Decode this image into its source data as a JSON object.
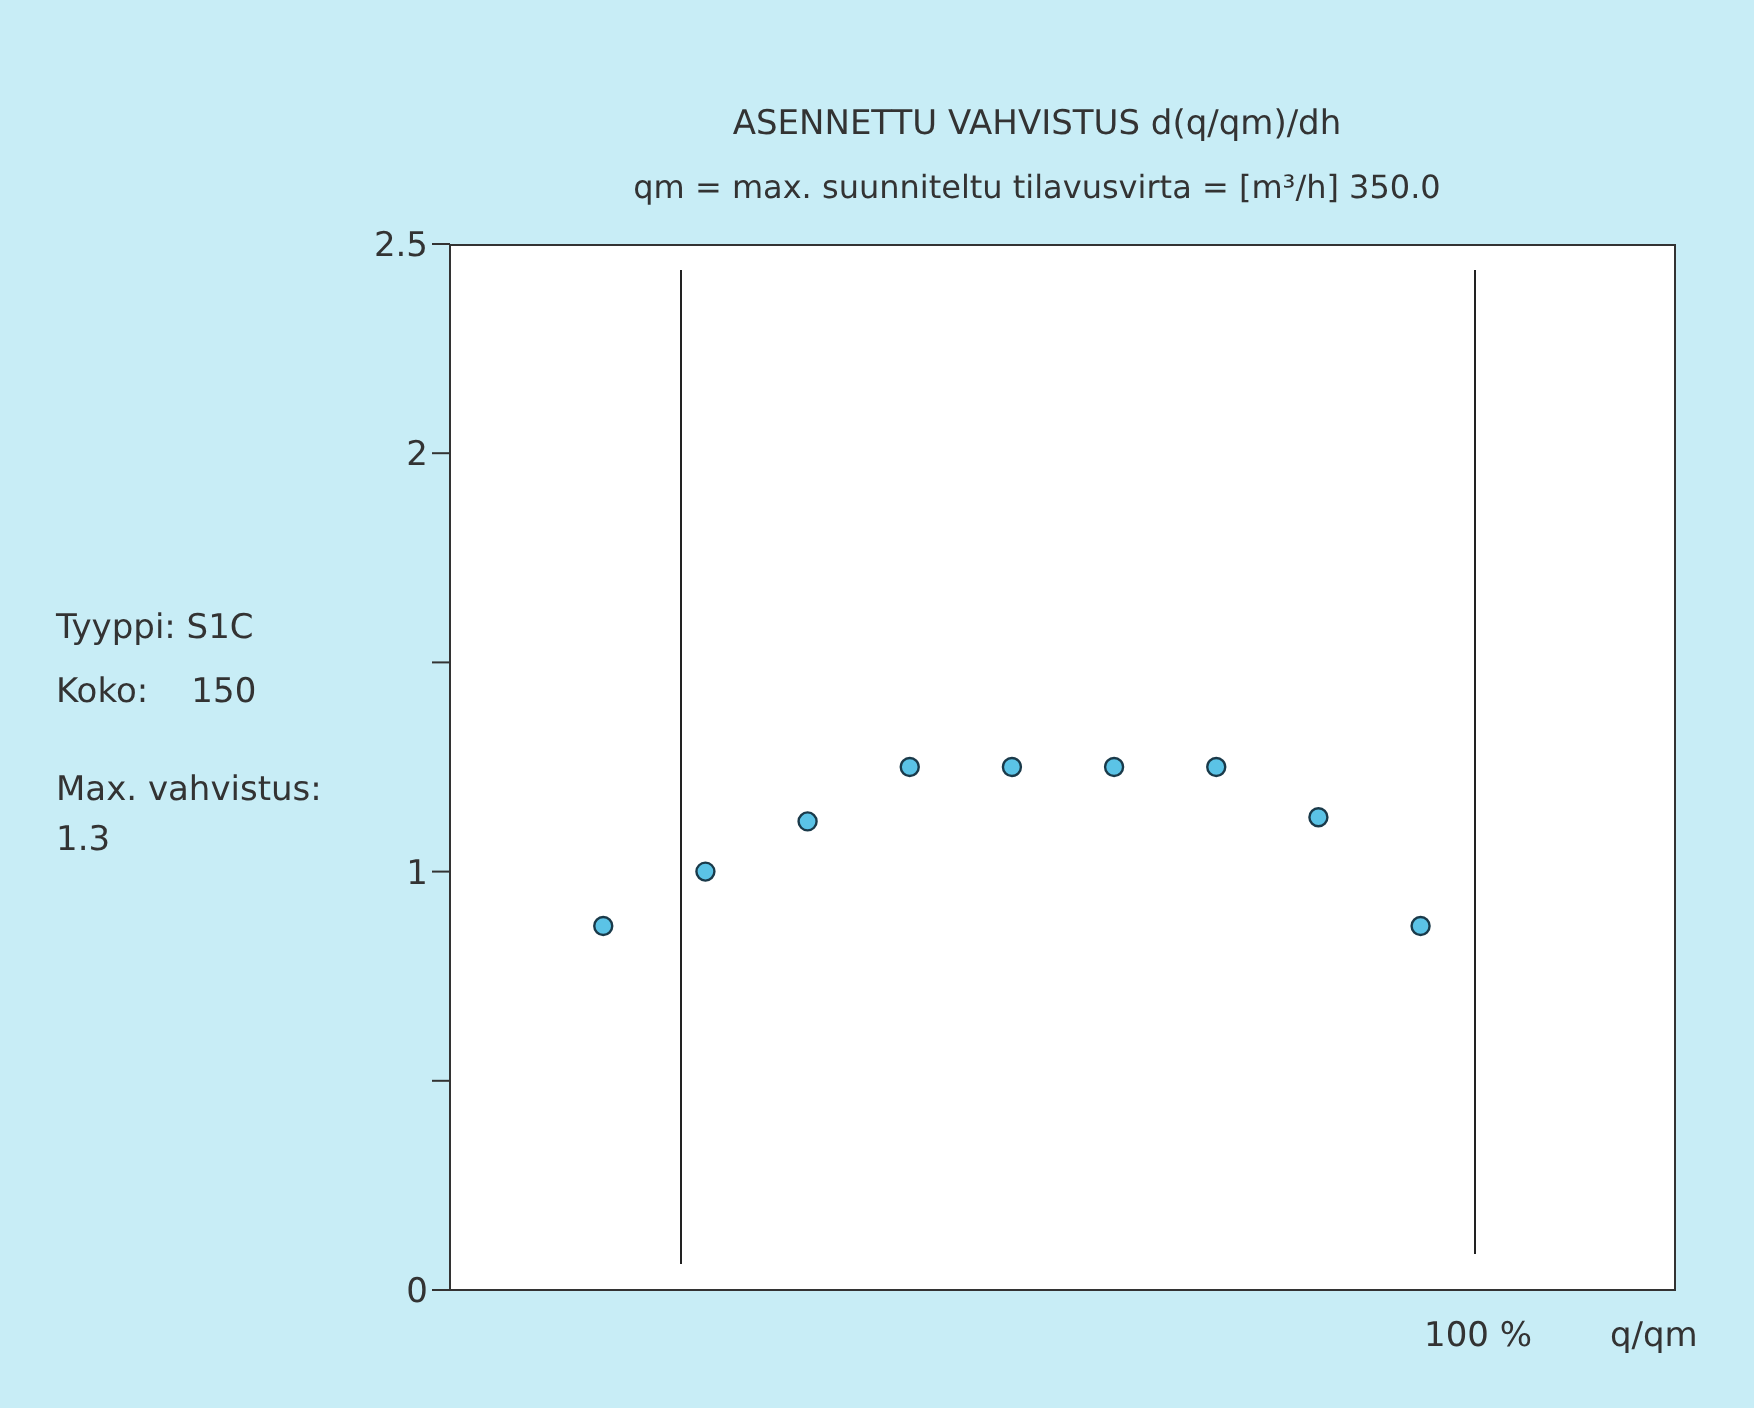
{
  "chart_data": {
    "type": "scatter",
    "title": "ASENNETTU VAHVISTUS  d(q/qm)/dh",
    "subtitle": "qm = max. suunniteltu tilavusvirta = [m³/h] 350.0",
    "xlabel": "q/qm",
    "annotations": [
      "Tyyppi: S1C",
      "Koko:    150",
      "Max. vahvistus: 1.3",
      "100 %"
    ],
    "categories": [
      null,
      null,
      null,
      null,
      null,
      null,
      null,
      null,
      null,
      null,
      null,
      null
    ],
    "series": [
      {
        "color": "#5bc3e6",
        "values": [
          null,
          0.87,
          1.0,
          1.12,
          1.25,
          1.25,
          1.25,
          1.25,
          1.13,
          0.87,
          null,
          null
        ]
      }
    ],
    "ylim": [
      0,
      2.5
    ],
    "yticks": [
      0,
      {
        "value": 0.5,
        "label": null
      },
      1,
      {
        "value": 1.5,
        "label": null
      },
      2,
      2.5
    ],
    "marker": "circle",
    "grid": false
  }
}
